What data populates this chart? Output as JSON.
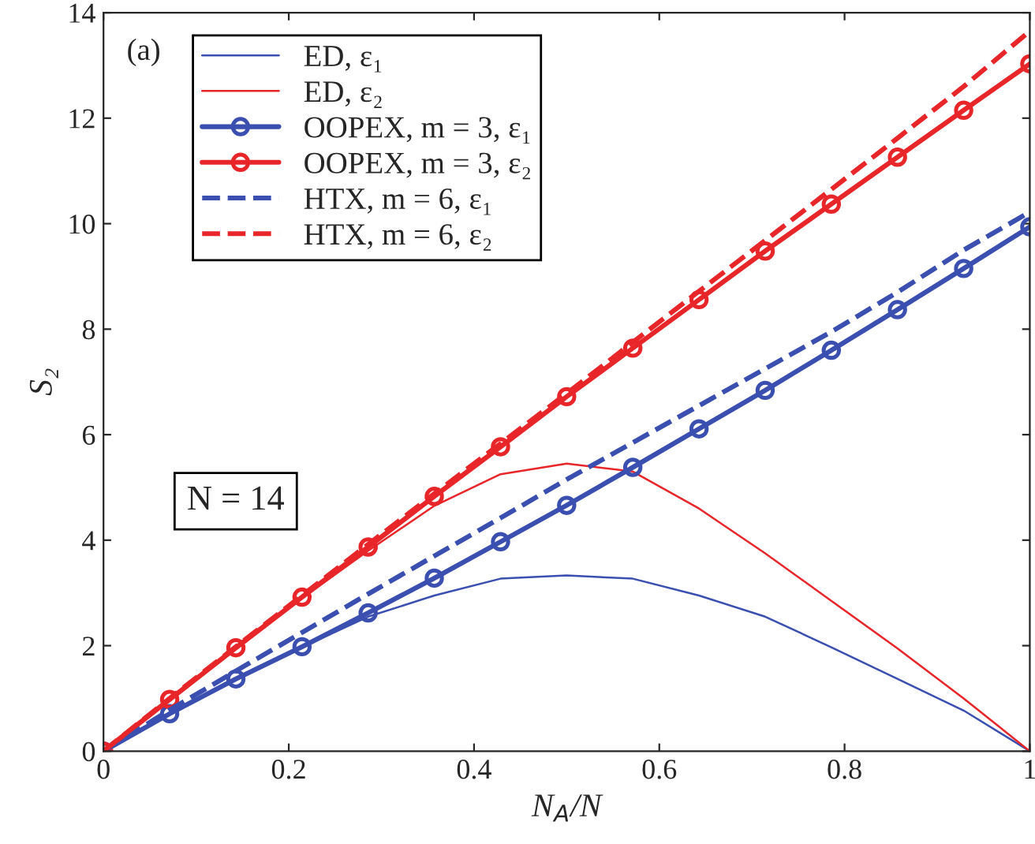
{
  "chart_data": {
    "type": "line",
    "xlabel": "N$_{A}$/N",
    "ylabel": "S₂",
    "x": [
      0,
      0.0714,
      0.1429,
      0.2143,
      0.2857,
      0.3571,
      0.4286,
      0.5,
      0.5714,
      0.6429,
      0.7143,
      0.7857,
      0.8571,
      0.9286,
      1
    ],
    "series": [
      {
        "name": "ED, ε₁",
        "color": "#3a4fb0",
        "marker": "none",
        "line_style": "solid",
        "values": [
          0,
          0.7,
          1.35,
          1.97,
          2.55,
          2.95,
          3.27,
          3.33,
          3.27,
          2.95,
          2.55,
          1.97,
          1.37,
          0.77,
          0
        ]
      },
      {
        "name": "ED, ε₂",
        "color": "#e8262a",
        "marker": "none",
        "line_style": "solid",
        "values": [
          0,
          0.98,
          1.95,
          2.9,
          3.8,
          4.65,
          5.25,
          5.45,
          5.3,
          4.6,
          3.75,
          2.85,
          1.95,
          1.0,
          0
        ]
      },
      {
        "name": "OOPEX, m = 3, ε₁",
        "color": "#3a4fb0",
        "marker": "circle",
        "line_style": "solid",
        "values": [
          0,
          0.71,
          1.37,
          1.98,
          2.62,
          3.28,
          3.97,
          4.66,
          5.38,
          6.11,
          6.84,
          7.6,
          8.37,
          9.15,
          9.94
        ]
      },
      {
        "name": "OOPEX, m = 3, ε₂",
        "color": "#e8262a",
        "marker": "circle",
        "line_style": "solid",
        "values": [
          0,
          0.98,
          1.96,
          2.92,
          3.87,
          4.83,
          5.77,
          6.72,
          7.64,
          8.56,
          9.48,
          10.37,
          11.26,
          12.15,
          13.03
        ]
      },
      {
        "name": "HTX, m = 6, ε₁",
        "color": "#3a4fb0",
        "marker": "none",
        "line_style": "dashed",
        "values": [
          0,
          0.78,
          1.52,
          2.25,
          2.98,
          3.7,
          4.42,
          5.15,
          5.85,
          6.55,
          7.25,
          7.95,
          8.7,
          9.5,
          10.22
        ]
      },
      {
        "name": "HTX, m = 6, ε₂",
        "color": "#e8262a",
        "marker": "none",
        "line_style": "dashed",
        "values": [
          0,
          1.0,
          1.98,
          2.95,
          3.92,
          4.88,
          5.83,
          6.78,
          7.75,
          8.72,
          9.68,
          10.65,
          11.62,
          12.6,
          13.65
        ]
      }
    ],
    "xlim": [
      0,
      1
    ],
    "ylim": [
      0,
      14
    ],
    "xticks": [
      0,
      0.2,
      0.4,
      0.6,
      0.8,
      1
    ],
    "yticks": [
      0,
      2,
      4,
      6,
      8,
      10,
      12,
      14
    ],
    "grid": false,
    "legend": "top left",
    "annotations": [
      "(a)",
      "N = 14"
    ]
  }
}
